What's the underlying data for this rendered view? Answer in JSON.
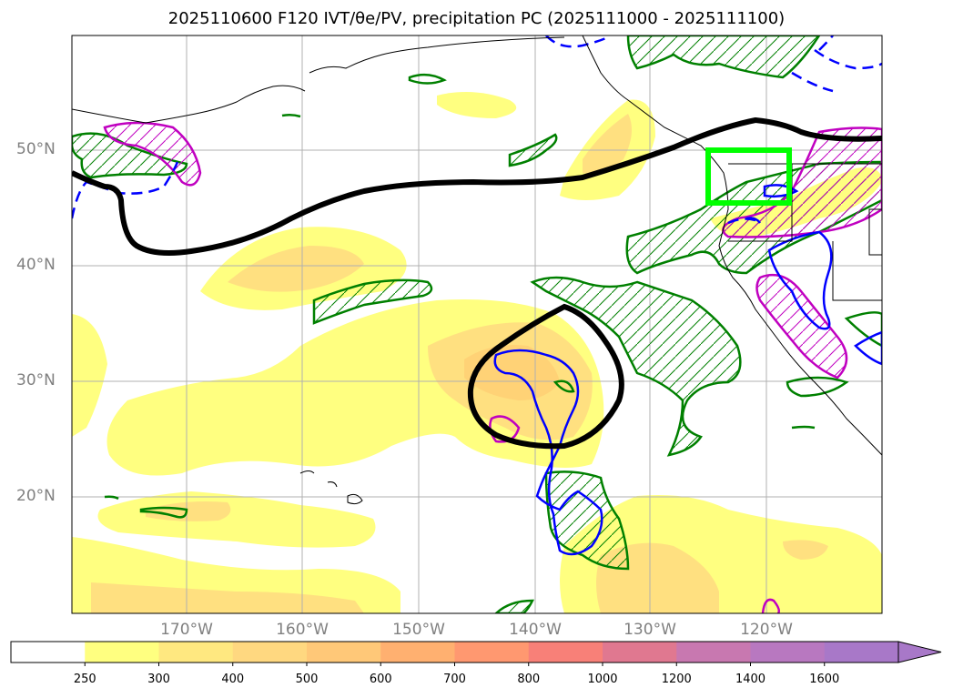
{
  "title": "2025110600 F120 IVT/θe/PV, precipitation PC (2025111000 - 2025111100)",
  "map": {
    "lat_labels": [
      "50°N",
      "40°N",
      "30°N",
      "20°N"
    ],
    "lon_labels": [
      "170°W",
      "160°W",
      "150°W",
      "140°W",
      "130°W",
      "120°W"
    ],
    "colors": {
      "ivt_250": "#ffff80",
      "ivt_300": "#ffe080",
      "ivt_400": "#ffc870",
      "pv_contour": "#000000",
      "precip_pos": "#008000",
      "precip_neg": "#0000ff",
      "magenta_contour": "#c000c0",
      "target_box": "#00ff00",
      "coast": "#000000",
      "grid": "#b0b0b0"
    }
  },
  "colorbar": {
    "levels": [
      "250",
      "300",
      "400",
      "500",
      "600",
      "700",
      "800",
      "1000",
      "1200",
      "1400",
      "1600"
    ],
    "colors": [
      "#ffffff",
      "#ffff80",
      "#ffe880",
      "#ffd880",
      "#ffc878",
      "#ffb070",
      "#ff9870",
      "#f88078",
      "#e07890",
      "#c878b0",
      "#b878c0",
      "#a878c8"
    ]
  }
}
